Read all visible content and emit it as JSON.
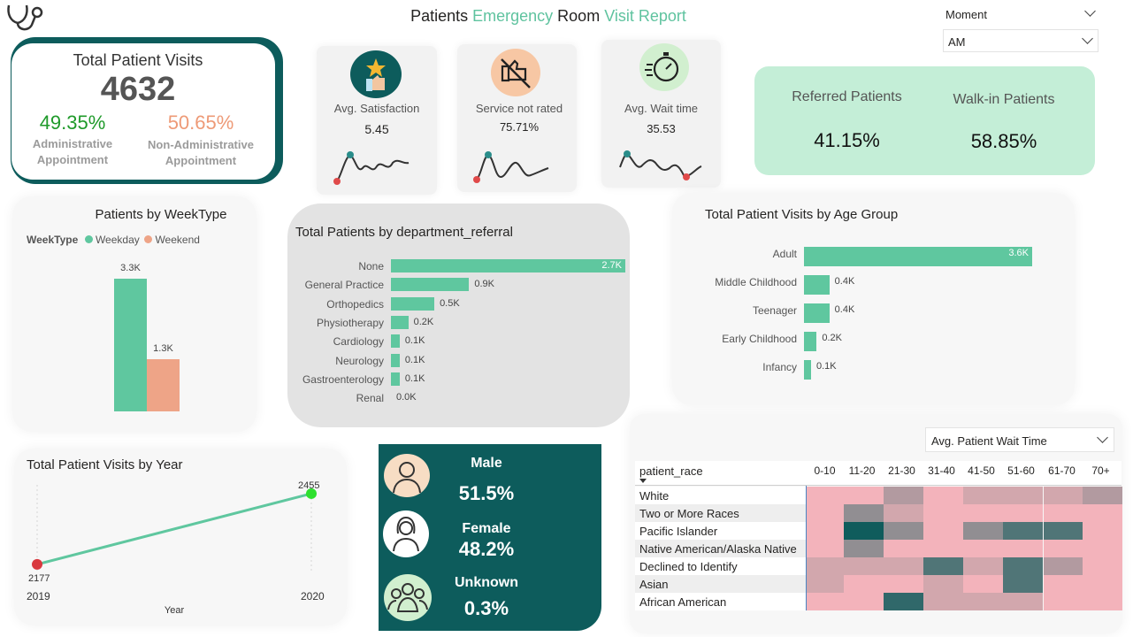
{
  "header": {
    "title_parts": [
      {
        "text": "Patients ",
        "accent": false
      },
      {
        "text": "Emergency",
        "accent": true
      },
      {
        "text": " Room ",
        "accent": false
      },
      {
        "text": "Visit Report",
        "accent": true
      }
    ]
  },
  "filters": {
    "moment_label": "Moment",
    "moment_value": "AM",
    "metric_value": "Avg. Patient Wait Time"
  },
  "total_visits": {
    "title": "Total Patient Visits",
    "value": "4632",
    "admin_pct": "49.35%",
    "admin_label_1": "Administrative",
    "admin_label_2": "Appointment",
    "nonadmin_pct": "50.65%",
    "nonadmin_label_1": "Non-Administrative",
    "nonadmin_label_2": "Appointment"
  },
  "kpis": [
    {
      "label": "Avg. Satisfaction",
      "value": "5.45",
      "icon": "satisfaction-star-thumb-icon"
    },
    {
      "label": "Service not rated",
      "value": "75.71%",
      "icon": "thumbs-down-slash-icon"
    },
    {
      "label": "Avg. Wait time",
      "value": "35.53",
      "icon": "stopwatch-icon"
    }
  ],
  "referral_split": {
    "referred_label": "Referred Patients",
    "referred_value": "41.15%",
    "walkin_label": "Walk-in Patients",
    "walkin_value": "58.85%"
  },
  "weektype": {
    "title": "Patients by WeekType",
    "legend_title": "WeekType",
    "colors": {
      "Weekday": "#5fc79f",
      "Weekend": "#eea487"
    }
  },
  "department": {
    "title": "Total Patients by department_referral"
  },
  "agegroup": {
    "title": "Total Patient Visits by Age Group"
  },
  "year": {
    "title": "Total Patient Visits by Year"
  },
  "gender": [
    {
      "label": "Male",
      "value": "51.5%",
      "icon": "male-avatar-icon"
    },
    {
      "label": "Female",
      "value": "48.2%",
      "icon": "female-avatar-icon"
    },
    {
      "label": "Unknown",
      "value": "0.3%",
      "icon": "group-avatar-icon"
    }
  ],
  "heatmap": {
    "row_header": "patient_race",
    "columns": [
      "0-10",
      "11-20",
      "21-30",
      "31-40",
      "41-50",
      "51-60",
      "61-70",
      "70+"
    ],
    "rows": [
      "White",
      "Two or More Races",
      "Pacific Islander",
      "Native American/Alaska Native",
      "Declined to Identify",
      "Asian",
      "African American"
    ],
    "levels": [
      [
        1,
        1,
        3,
        1,
        2,
        2,
        2,
        3
      ],
      [
        1,
        4,
        2,
        1,
        1,
        1,
        1,
        1
      ],
      [
        1,
        8,
        4,
        1,
        4,
        6,
        6,
        1
      ],
      [
        1,
        4,
        1,
        1,
        1,
        1,
        1,
        1
      ],
      [
        2,
        2,
        2,
        6,
        2,
        6,
        3,
        1
      ],
      [
        2,
        1,
        1,
        2,
        1,
        6,
        1,
        1
      ],
      [
        1,
        1,
        7,
        2,
        2,
        2,
        1,
        1
      ]
    ],
    "colors": {
      "low": "#f3b3bb",
      "high": "#0f5c5c"
    }
  },
  "chart_data": [
    {
      "type": "bar",
      "title": "Patients by WeekType",
      "categories": [
        "Weekday",
        "Weekend"
      ],
      "values": [
        3300,
        1300
      ],
      "labels": [
        "3.3K",
        "1.3K"
      ],
      "legend": "top-left"
    },
    {
      "type": "bar",
      "orientation": "horizontal",
      "title": "Total Patients by department_referral",
      "categories": [
        "None",
        "General Practice",
        "Orthopedics",
        "Physiotherapy",
        "Cardiology",
        "Neurology",
        "Gastroenterology",
        "Renal"
      ],
      "values": [
        2700,
        900,
        500,
        200,
        100,
        100,
        100,
        0
      ],
      "labels": [
        "2.7K",
        "0.9K",
        "0.5K",
        "0.2K",
        "0.1K",
        "0.1K",
        "0.1K",
        "0.0K"
      ]
    },
    {
      "type": "bar",
      "orientation": "horizontal",
      "title": "Total Patient Visits by Age Group",
      "categories": [
        "Adult",
        "Middle Childhood",
        "Teenager",
        "Early Childhood",
        "Infancy"
      ],
      "values": [
        3600,
        400,
        400,
        200,
        100
      ],
      "labels": [
        "3.6K",
        "0.4K",
        "0.4K",
        "0.2K",
        "0.1K"
      ]
    },
    {
      "type": "line",
      "title": "Total Patient Visits by Year",
      "xlabel": "Year",
      "x": [
        "2019",
        "2020"
      ],
      "values": [
        2177,
        2455
      ]
    }
  ]
}
